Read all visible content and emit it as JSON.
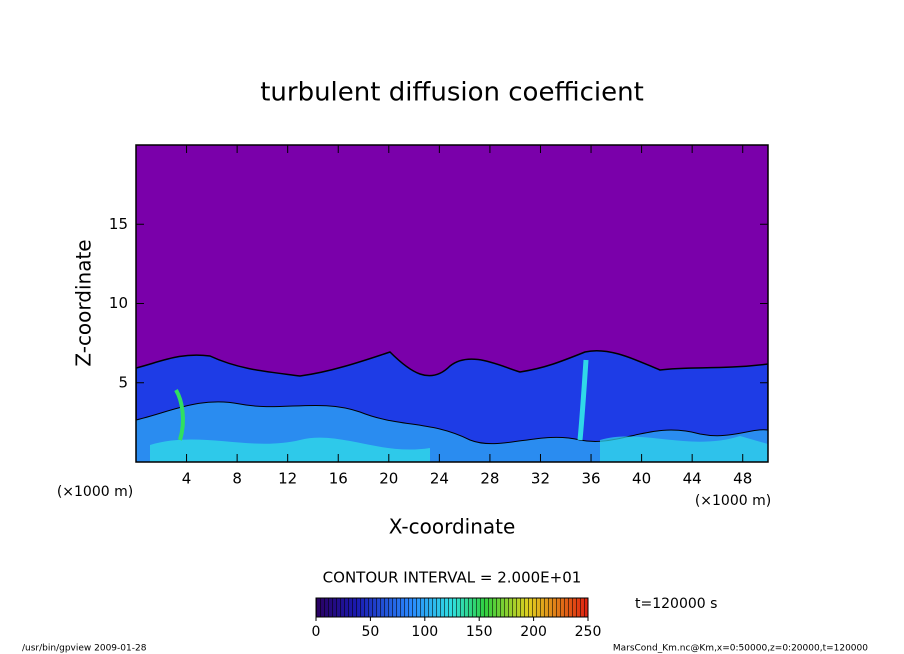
{
  "chart_data": {
    "type": "contour",
    "title": "turbulent diffusion coefficient",
    "xlabel": "X-coordinate",
    "ylabel": "Z-coordinate",
    "xunit": "(×1000 m)",
    "yunit": "(×1000 m)",
    "xlim": [
      0,
      50
    ],
    "ylim": [
      0,
      20
    ],
    "xticks": [
      4,
      8,
      12,
      16,
      20,
      24,
      28,
      32,
      36,
      40,
      44,
      48
    ],
    "yticks": [
      5,
      10,
      15
    ],
    "contour_interval": "CONTOUR INTERVAL = 2.000E+01",
    "colorbar": {
      "lim": [
        0,
        250
      ],
      "ticks": [
        0,
        50,
        100,
        150,
        200,
        250
      ]
    },
    "time_label": "t=120000 s",
    "footer_left": "/usr/bin/gpview  2009-01-28",
    "footer_right": "MarsCond_Km.nc@Km,x=0:50000,z=0:20000,t=120000"
  }
}
